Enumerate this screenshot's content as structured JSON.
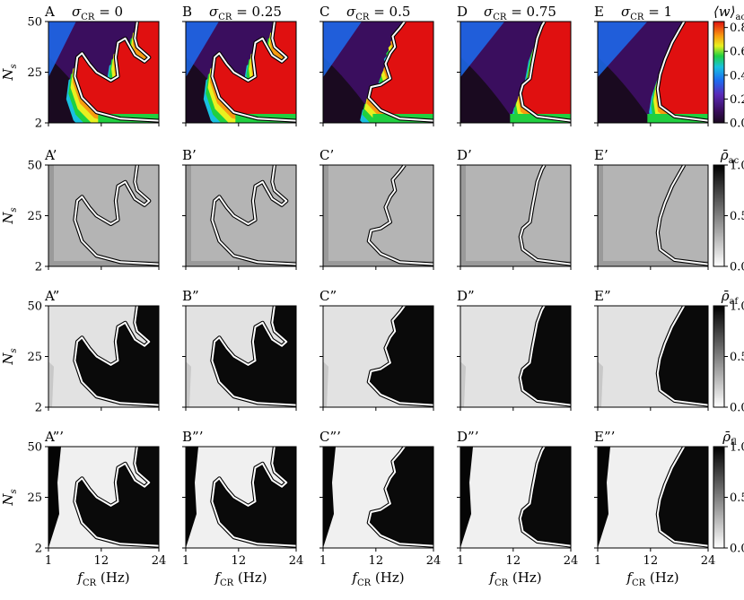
{
  "figure": {
    "x_axis_label": "f_CR (Hz)",
    "y_axis_label": "N_s",
    "x_ticks": [
      "1",
      "12",
      "24"
    ],
    "y_ticks": [
      "2",
      "25",
      "50"
    ]
  },
  "columns": [
    {
      "letter": "A",
      "sigma_label": "σ_CR = 0",
      "sigma": 0
    },
    {
      "letter": "B",
      "sigma_label": "σ_CR = 0.25",
      "sigma": 0.25
    },
    {
      "letter": "C",
      "sigma_label": "σ_CR = 0.5",
      "sigma": 0.5
    },
    {
      "letter": "D",
      "sigma_label": "σ_CR = 0.75",
      "sigma": 0.75
    },
    {
      "letter": "E",
      "sigma_label": "σ_CR = 1",
      "sigma": 1
    }
  ],
  "rows": [
    {
      "suffix": "",
      "colorbar_label": "⟨w⟩_ac",
      "colorbar_ticks": [
        "0.0",
        "0.2",
        "0.4",
        "0.6",
        "0.8"
      ],
      "colormap": "jet"
    },
    {
      "suffix": "’",
      "colorbar_label": "ρ̄_ac",
      "colorbar_ticks": [
        "0.0",
        "0.5",
        "1.0"
      ],
      "colormap": "gray"
    },
    {
      "suffix": "”",
      "colorbar_label": "ρ̄_af",
      "colorbar_ticks": [
        "0.0",
        "0.5",
        "1.0"
      ],
      "colormap": "gray"
    },
    {
      "suffix": "”’",
      "colorbar_label": "ρ̄_fl",
      "colorbar_ticks": [
        "0.0",
        "0.5",
        "1.0"
      ],
      "colormap": "gray"
    }
  ],
  "chart_data": {
    "type": "heatmap",
    "x_range": [
      1,
      24
    ],
    "y_range": [
      2,
      50
    ],
    "x_label": "f_CR (Hz)",
    "y_label": "N_s",
    "panels": [
      [
        "A",
        "B",
        "C",
        "D",
        "E"
      ],
      [
        "A’",
        "B’",
        "C’",
        "D’",
        "E’"
      ],
      [
        "A”",
        "B”",
        "C”",
        "D”",
        "E”"
      ],
      [
        "A”’",
        "B”’",
        "C”’",
        "D”’",
        "E”’"
      ]
    ],
    "colorbars": [
      {
        "quantity": "⟨w⟩_ac",
        "range": [
          0.0,
          0.85
        ],
        "ticks": [
          0.0,
          0.2,
          0.4,
          0.6,
          0.8
        ]
      },
      {
        "quantity": "ρ̄_ac",
        "range": [
          0.0,
          1.0
        ],
        "ticks": [
          0.0,
          0.5,
          1.0
        ]
      },
      {
        "quantity": "ρ̄_af",
        "range": [
          0.0,
          1.0
        ],
        "ticks": [
          0.0,
          0.5,
          1.0
        ]
      },
      {
        "quantity": "ρ̄_fl",
        "range": [
          0.0,
          1.0
        ],
        "ticks": [
          0.0,
          0.5,
          1.0
        ]
      }
    ],
    "boundary_contour": [
      [
        [
          24,
          3
        ],
        [
          16,
          4
        ],
        [
          11,
          7
        ],
        [
          8,
          14
        ],
        [
          6.5,
          24
        ],
        [
          7,
          33
        ],
        [
          8,
          35
        ],
        [
          9.5,
          30
        ],
        [
          11,
          26
        ],
        [
          14,
          22
        ],
        [
          15.5,
          24
        ],
        [
          15,
          33
        ],
        [
          15.5,
          40
        ],
        [
          17,
          42
        ],
        [
          18,
          38
        ],
        [
          19,
          34
        ],
        [
          21,
          31
        ],
        [
          22,
          33
        ],
        [
          19.5,
          38
        ],
        [
          19,
          42
        ],
        [
          19.5,
          50
        ]
      ],
      [
        [
          24,
          3
        ],
        [
          16,
          4
        ],
        [
          11,
          7
        ],
        [
          8,
          14
        ],
        [
          6.5,
          24
        ],
        [
          7,
          33
        ],
        [
          8,
          35
        ],
        [
          9.5,
          30
        ],
        [
          11,
          26
        ],
        [
          14,
          22
        ],
        [
          15.5,
          24
        ],
        [
          15,
          33
        ],
        [
          15.5,
          40
        ],
        [
          17,
          42
        ],
        [
          18,
          38
        ],
        [
          19,
          34
        ],
        [
          21,
          31
        ],
        [
          22,
          33
        ],
        [
          19.5,
          38
        ],
        [
          19,
          42
        ],
        [
          19.5,
          50
        ]
      ],
      [
        [
          24,
          3
        ],
        [
          17,
          4
        ],
        [
          13,
          8
        ],
        [
          10.5,
          14
        ],
        [
          11,
          19
        ],
        [
          13,
          20
        ],
        [
          15,
          23
        ],
        [
          14,
          30
        ],
        [
          15,
          35
        ],
        [
          16,
          38
        ],
        [
          15.5,
          43
        ],
        [
          17,
          47
        ],
        [
          18,
          50
        ]
      ],
      [
        [
          24,
          3
        ],
        [
          17,
          5
        ],
        [
          14,
          10
        ],
        [
          13.5,
          16
        ],
        [
          14,
          20
        ],
        [
          15.5,
          23
        ],
        [
          16,
          30
        ],
        [
          16.5,
          36
        ],
        [
          17,
          42
        ],
        [
          18,
          48
        ],
        [
          18.5,
          50
        ]
      ],
      [
        [
          24,
          3
        ],
        [
          17,
          5
        ],
        [
          14,
          10
        ],
        [
          13.5,
          18
        ],
        [
          14,
          25
        ],
        [
          15,
          32
        ],
        [
          16.5,
          40
        ],
        [
          18,
          46
        ],
        [
          19,
          50
        ]
      ]
    ]
  }
}
